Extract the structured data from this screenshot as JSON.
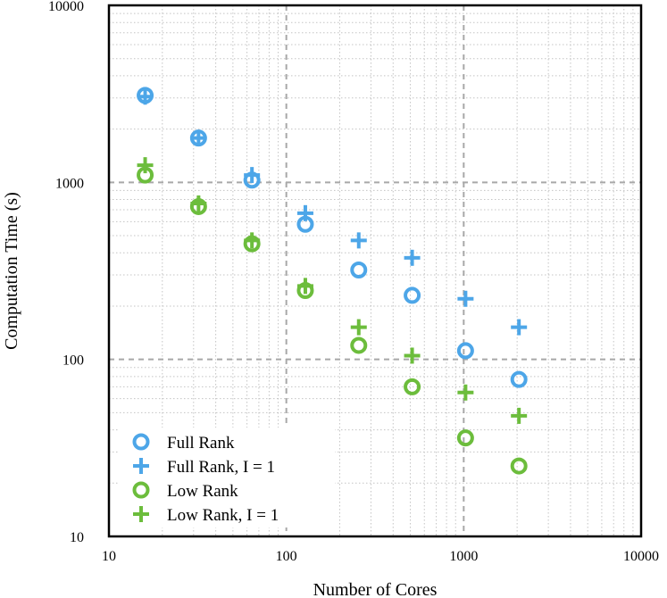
{
  "chart_data": {
    "type": "scatter",
    "title": "",
    "xlabel": "Number of Cores",
    "ylabel": "Computation Time (s)",
    "xscale": "log",
    "yscale": "log",
    "xlim": [
      10,
      10000
    ],
    "ylim": [
      10,
      10000
    ],
    "xticks": [
      10,
      100,
      1000,
      10000
    ],
    "yticks": [
      10,
      100,
      1000,
      10000
    ],
    "xtick_labels": [
      "10",
      "100",
      "1000",
      "10000"
    ],
    "ytick_labels": [
      "10",
      "100",
      "1000",
      "10000"
    ],
    "grid": true,
    "legend_position": "bottom-left",
    "series": [
      {
        "name": "Full Rank",
        "marker": "circle",
        "color": "#4da6e8",
        "x": [
          16,
          32,
          64,
          128,
          256,
          512,
          1024,
          2048
        ],
        "y": [
          3100,
          1780,
          1030,
          580,
          320,
          230,
          112,
          77
        ]
      },
      {
        "name": "Full Rank, I = 1",
        "marker": "plus",
        "color": "#4da6e8",
        "x": [
          16,
          32,
          64,
          128,
          256,
          512,
          1024,
          2048
        ],
        "y": [
          3050,
          1780,
          1100,
          670,
          470,
          375,
          220,
          152
        ]
      },
      {
        "name": "Low Rank",
        "marker": "circle",
        "color": "#6cbd3c",
        "x": [
          16,
          32,
          64,
          128,
          256,
          512,
          1024,
          2048
        ],
        "y": [
          1100,
          730,
          450,
          245,
          120,
          70,
          36,
          25
        ]
      },
      {
        "name": "Low Rank, I = 1",
        "marker": "plus",
        "color": "#6cbd3c",
        "x": [
          16,
          32,
          64,
          128,
          256,
          512,
          1024,
          2048
        ],
        "y": [
          1250,
          760,
          470,
          260,
          152,
          105,
          65,
          48
        ]
      }
    ]
  }
}
